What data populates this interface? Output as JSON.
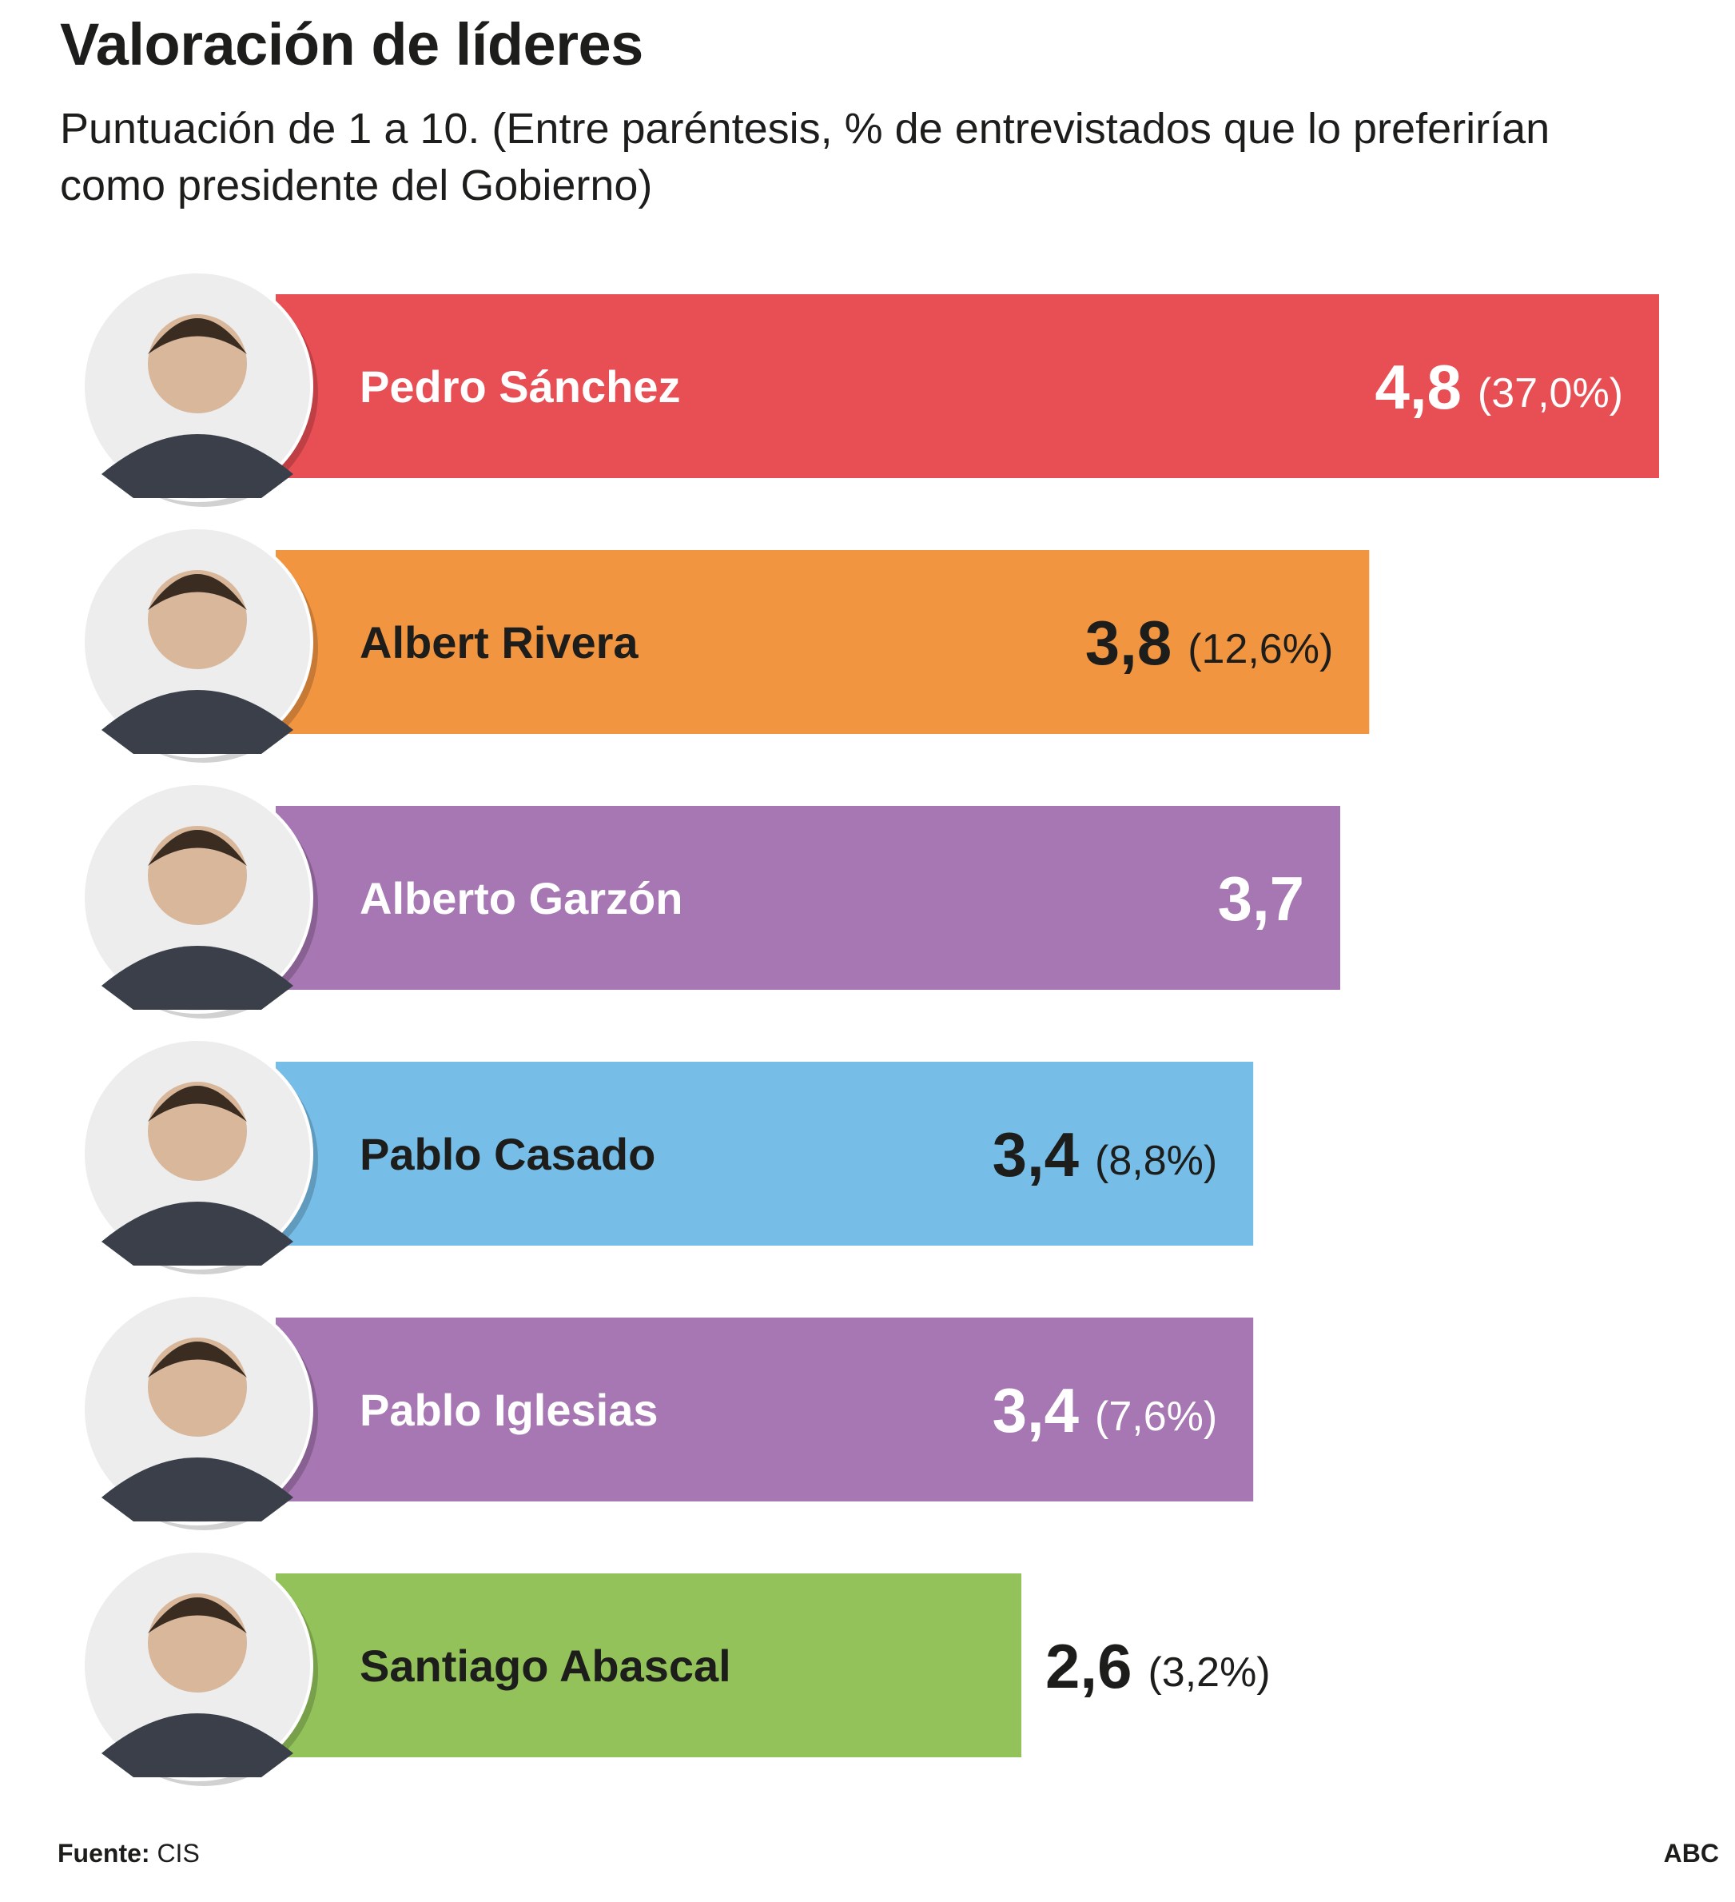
{
  "title": "Valoración de líderes",
  "subtitle": "Puntuación de 1 a 10. (Entre paréntesis, % de entrevistados que lo preferirían como presidente del Gobierno)",
  "footer": {
    "source_label": "Fuente:",
    "source_value": "CIS",
    "brand": "ABC"
  },
  "chart_data": {
    "type": "bar",
    "orientation": "horizontal",
    "title": "Valoración de líderes",
    "subtitle": "Puntuación de 1 a 10. (Entre paréntesis, % de entrevistados que lo preferirían como presidente del Gobierno)",
    "xlabel": "",
    "ylabel": "",
    "grid": false,
    "legend": "none",
    "categories": [
      "Pedro Sánchez",
      "Albert Rivera",
      "Alberto Garzón",
      "Pablo Casado",
      "Pablo Iglesias",
      "Santiago Abascal"
    ],
    "values": [
      4.8,
      3.8,
      3.7,
      3.4,
      3.4,
      2.6
    ],
    "value_labels": [
      "4,8",
      "3,8",
      "3,7",
      "3,4",
      "3,4",
      "2,6"
    ],
    "preference_labels": [
      "(37,0%)",
      "(12,6%)",
      "",
      "(8,8%)",
      "(7,6%)",
      "(3,2%)"
    ],
    "preference_pct": [
      37.0,
      12.6,
      null,
      8.8,
      7.6,
      3.2
    ],
    "colors": [
      "#e84f55",
      "#f29541",
      "#a677b2",
      "#76bee8",
      "#a677b2",
      "#93c25a"
    ],
    "text_colors": [
      "#ffffff",
      "#1d1d1b",
      "#ffffff",
      "#1d1d1b",
      "#ffffff",
      "#1d1d1b"
    ],
    "photo_icons": [
      "pedro-sanchez-photo-icon",
      "albert-rivera-photo-icon",
      "alberto-garzon-photo-icon",
      "pablo-casado-photo-icon",
      "pablo-iglesias-photo-icon",
      "santiago-abascal-photo-icon"
    ]
  }
}
